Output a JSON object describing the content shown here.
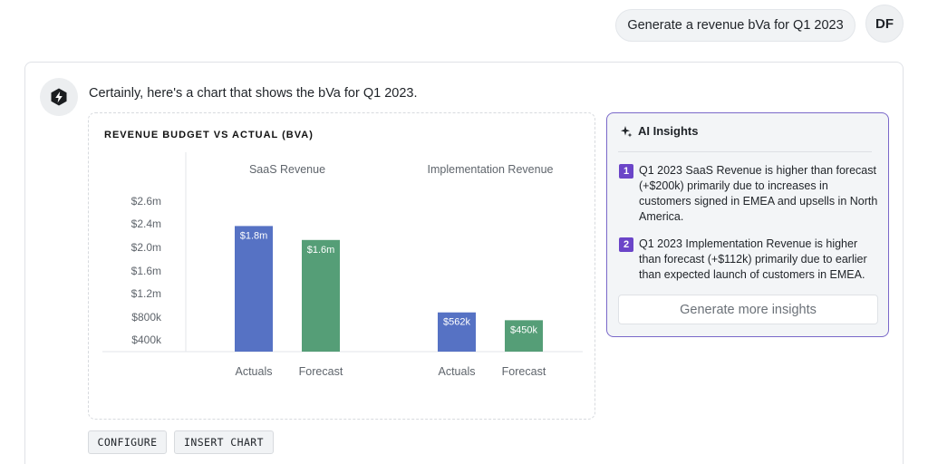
{
  "user_message": {
    "text": "Generate a revenue bVa for Q1 2023",
    "avatar_initials": "DF"
  },
  "assistant": {
    "icon": "lightning-bolt-icon",
    "message": "Certainly, here's a chart that shows the bVa for Q1 2023."
  },
  "chart_card": {
    "actions": {
      "configure_label": "CONFIGURE",
      "insert_label": "INSERT CHART"
    }
  },
  "chart_data": {
    "type": "bar",
    "title": "REVENUE BUDGET VS ACTUAL (BVA)",
    "yticks": [
      "$2.6m",
      "$2.4m",
      "$2.0m",
      "$1.6m",
      "$1.2m",
      "$800k",
      "$400k"
    ],
    "groups": [
      {
        "name": "SaaS Revenue",
        "bars": [
          {
            "category": "Actuals",
            "value": 1.8,
            "label": "$1.8m",
            "color": "#5672c4"
          },
          {
            "category": "Forecast",
            "value": 1.6,
            "label": "$1.6m",
            "color": "#559e77"
          }
        ]
      },
      {
        "name": "Implementation Revenue",
        "bars": [
          {
            "category": "Actuals",
            "value": 0.562,
            "label": "$562k",
            "color": "#5672c4"
          },
          {
            "category": "Forecast",
            "value": 0.45,
            "label": "$450k",
            "color": "#559e77"
          }
        ]
      }
    ],
    "units": "millions USD"
  },
  "insights": {
    "title": "AI Insights",
    "icon": "sparkle-icon",
    "items": [
      {
        "num": "1",
        "text": "Q1 2023 SaaS Revenue is higher than forecast (+$200k) primarily due to increases in customers signed in EMEA and upsells in North America."
      },
      {
        "num": "2",
        "text": "Q1 2023 Implementation Revenue is higher than forecast (+$112k) primarily due to earlier than expected launch of customers in EMEA."
      }
    ],
    "more_button": "Generate more insights"
  }
}
